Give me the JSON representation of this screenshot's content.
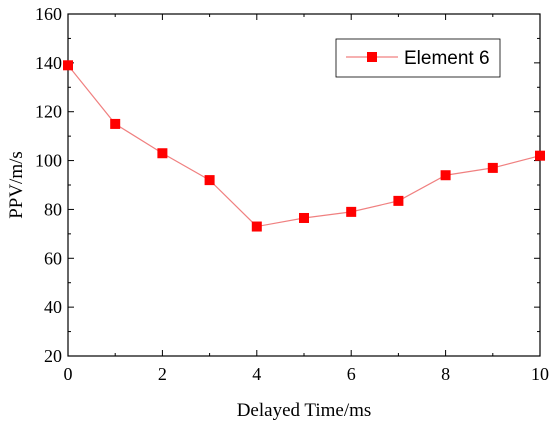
{
  "chart_data": {
    "type": "line",
    "xlabel": "Delayed Time/ms",
    "ylabel": "PPV/m/s",
    "xlim": [
      0,
      10
    ],
    "ylim": [
      20,
      160
    ],
    "xticks": [
      "0",
      "2",
      "4",
      "6",
      "8",
      "10"
    ],
    "yticks": [
      "20",
      "40",
      "60",
      "80",
      "100",
      "120",
      "140",
      "160"
    ],
    "grid": false,
    "legend_position": "top-right",
    "series": [
      {
        "name": "Element 6",
        "color": "#ff0000",
        "line_color": "#f08080",
        "marker": "square",
        "x": [
          0,
          1,
          2,
          3,
          4,
          5,
          6,
          7,
          8,
          9,
          10
        ],
        "y": [
          139,
          115,
          103,
          92,
          73,
          76.5,
          79,
          83.5,
          94,
          97,
          102
        ]
      }
    ]
  }
}
